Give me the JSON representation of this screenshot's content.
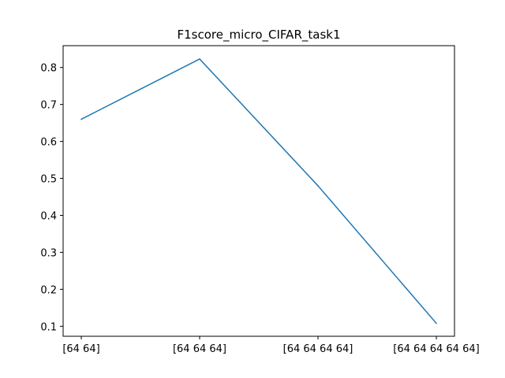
{
  "chart_data": {
    "type": "line",
    "title": "F1score_micro_CIFAR_task1",
    "xlabel": "",
    "ylabel": "",
    "categories": [
      "[64 64]",
      "[64 64 64]",
      "[64 64 64 64]",
      "[64 64 64 64 64]"
    ],
    "series": [
      {
        "values": [
          0.66,
          0.823,
          0.48,
          0.108
        ],
        "color": "#1f77b4"
      }
    ],
    "yticks": [
      "0.1",
      "0.2",
      "0.3",
      "0.4",
      "0.5",
      "0.6",
      "0.7",
      "0.8"
    ],
    "ylim": [
      0.073,
      0.859
    ],
    "grid": false,
    "legend": false
  }
}
